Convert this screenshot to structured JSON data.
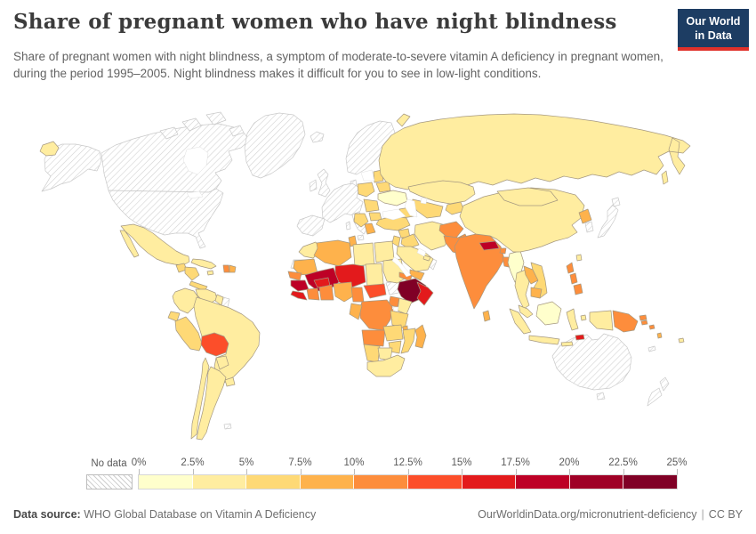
{
  "header": {
    "title": "Share of pregnant women who have night blindness",
    "subtitle": "Share of pregnant women with night blindness, a symptom of moderate-to-severe vitamin A deficiency in pregnant women, during the period 1995–2005. Night blindness makes it difficult for you to see in low-light conditions.",
    "logo": {
      "line1": "Our World",
      "line2": "in Data",
      "bg_color": "#1d3d63",
      "accent_color": "#e0312a"
    }
  },
  "legend": {
    "no_data_label": "No data",
    "tick_labels": [
      "0%",
      "2.5%",
      "5%",
      "7.5%",
      "10%",
      "12.5%",
      "15%",
      "17.5%",
      "20%",
      "22.5%",
      "25%"
    ],
    "colors": [
      "#ffffcc",
      "#ffeda0",
      "#fed976",
      "#feb24c",
      "#fd8d3c",
      "#fc4e2a",
      "#e31a1c",
      "#bd0026",
      "#9f0026",
      "#800026"
    ]
  },
  "footer": {
    "source_label": "Data source:",
    "source_text": "WHO Global Database on Vitamin A Deficiency",
    "link_text": "OurWorldinData.org/micronutrient-deficiency",
    "separator": "|",
    "license_text": "CC BY"
  },
  "chart_data": {
    "type": "choropleth",
    "title": "Share of pregnant women who have night blindness",
    "unit": "%",
    "period": "1995–2005",
    "bin_edges": [
      0,
      2.5,
      5,
      7.5,
      10,
      12.5,
      15,
      17.5,
      20,
      22.5,
      25
    ],
    "legend_position": "bottom",
    "values": {
      "Mexico": 1,
      "Cuba": 1,
      "Jamaica": 1,
      "Haiti": 4,
      "Dominican Republic": 3,
      "Guatemala": 2,
      "Honduras & Nicaragua": 2,
      "Costa Rica & Panama": 2,
      "Colombia": 1,
      "Venezuela": 1,
      "Guyana": 1,
      "Ecuador": 2,
      "Peru": 2,
      "Bolivia": 5,
      "Brazil": 1,
      "Paraguay": 1,
      "Uruguay": 1,
      "Argentina": 1,
      "Chile": 1,
      "Ukraine": 0,
      "Poland & Czechia": 2,
      "Baltic states": 2,
      "Belarus": 2,
      "Romania & Moldova": 2,
      "Bulgaria": 2,
      "Balkans": 2,
      "Albania & Greece": 3,
      "Russia": 1,
      "Chukotka (Russia)": 1,
      "Kazakhstan": 1,
      "Uzbekistan & Turkmenistan": 2,
      "Kyrgyzstan & Tajikistan": 2,
      "Caucasus": 2,
      "Turkey": 2,
      "Syria": 2,
      "Iraq": 2,
      "Jordan & Israel": 2,
      "Iran": 1,
      "Saudi Arabia": 1,
      "United Arab Emirates": 1,
      "Yemen": 3,
      "Afghanistan": 4,
      "Pakistan": 4,
      "India": 4,
      "Nepal": 7,
      "Bhutan": 4,
      "Bangladesh": 4,
      "Sri Lanka": 3,
      "Myanmar": 0,
      "China": 1,
      "Mongolia": 1,
      "North Korea": 3,
      "Taiwan": 1,
      "Thailand": 1,
      "Laos": 3,
      "Vietnam": 2,
      "Cambodia": 3,
      "Malaysia": 1,
      "Indonesia": 1,
      "Indonesia (Borneo)": 0,
      "Timor-Leste": 6,
      "Philippines": 4,
      "Papua New Guinea": 4,
      "Solomon Islands": 4,
      "Vanuatu": 3,
      "Fiji": 1,
      "Morocco": 1,
      "Algeria": 3,
      "Tunisia": 3,
      "Libya": 1,
      "Egypt": 1,
      "Mauritania": 3,
      "Mali": 7,
      "Niger": 6,
      "Chad": 1,
      "Sudan": 1,
      "Senegal": 4,
      "Guinea": 7,
      "Sierra Leone & Liberia": 6,
      "Côte d'Ivoire": 4,
      "Burkina Faso": 6,
      "Ghana, Togo & Benin": 4,
      "Nigeria": 3,
      "Cameroon": 4,
      "Central African Republic": 5,
      "Eritrea": 4,
      "Djibouti": 4,
      "Ethiopia": 9,
      "Somalia": 6,
      "Uganda": 4,
      "Kenya": 1,
      "Rwanda & Burundi": 4,
      "Democratic Republic of Congo": 4,
      "Congo & Gabon": 3,
      "Tanzania": 2,
      "Angola": 4,
      "Zambia": 2,
      "Malawi": 3,
      "Mozambique": 2,
      "Zimbabwe": 2,
      "Namibia": 2,
      "Botswana": 1,
      "South Africa": 1,
      "Madagascar": 3
    },
    "no_data": [
      "United States",
      "Canada",
      "Alaska (United States)",
      "Canadian Arctic islands",
      "Greenland",
      "Iceland",
      "Scandinavia",
      "Denmark",
      "United Kingdom",
      "Ireland",
      "Western Europe",
      "Iberia",
      "Italy",
      "Corsica & Sardinia",
      "Suriname",
      "Falkland Islands",
      "Western Sahara",
      "Oman",
      "South Sudan",
      "Japan",
      "South Korea",
      "Australia",
      "Tasmania",
      "New Zealand",
      "New Caledonia"
    ]
  }
}
